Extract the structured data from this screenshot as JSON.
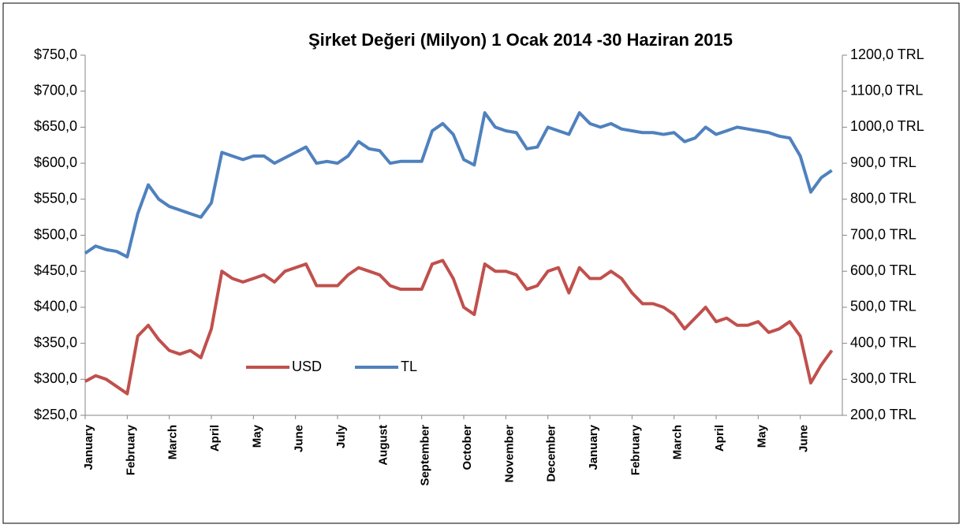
{
  "chart_data": {
    "type": "line",
    "title": "Şirket Değeri  (Milyon) 1 Ocak 2014 -30 Haziran 2015",
    "categories": [
      "January",
      null,
      null,
      null,
      "February",
      null,
      null,
      null,
      "March",
      null,
      null,
      null,
      "April",
      null,
      null,
      null,
      "May",
      null,
      null,
      null,
      "June",
      null,
      null,
      null,
      "July",
      null,
      null,
      null,
      "August",
      null,
      null,
      null,
      "September",
      null,
      null,
      null,
      "October",
      null,
      null,
      null,
      "November",
      null,
      null,
      null,
      "December",
      null,
      null,
      null,
      "January",
      null,
      null,
      null,
      "February",
      null,
      null,
      null,
      "March",
      null,
      null,
      null,
      "April",
      null,
      null,
      null,
      "May",
      null,
      null,
      null,
      "June",
      null,
      null,
      null
    ],
    "series": [
      {
        "name": "USD",
        "color": "#c0504d",
        "axis": "y",
        "values": [
          297,
          305,
          300,
          290,
          280,
          360,
          375,
          355,
          340,
          335,
          340,
          330,
          370,
          450,
          440,
          435,
          440,
          445,
          435,
          450,
          455,
          460,
          430,
          430,
          430,
          445,
          455,
          450,
          445,
          430,
          425,
          425,
          425,
          460,
          465,
          440,
          400,
          390,
          460,
          450,
          450,
          445,
          425,
          430,
          450,
          455,
          420,
          455,
          440,
          440,
          450,
          440,
          420,
          405,
          405,
          400,
          390,
          370,
          385,
          400,
          380,
          385,
          375,
          375,
          380,
          365,
          370,
          380,
          360,
          295,
          320,
          340
        ]
      },
      {
        "name": "TL",
        "color": "#4f81bd",
        "axis": "y2",
        "values": [
          650,
          670,
          660,
          655,
          640,
          760,
          840,
          800,
          780,
          770,
          760,
          750,
          790,
          930,
          920,
          910,
          920,
          920,
          900,
          915,
          930,
          945,
          900,
          905,
          900,
          920,
          960,
          940,
          935,
          900,
          905,
          905,
          905,
          990,
          1010,
          980,
          910,
          895,
          1040,
          1000,
          990,
          985,
          940,
          945,
          1000,
          990,
          980,
          1040,
          1010,
          1000,
          1010,
          995,
          990,
          985,
          985,
          980,
          985,
          960,
          970,
          1000,
          980,
          990,
          1000,
          995,
          990,
          985,
          975,
          970,
          920,
          820,
          860,
          880
        ]
      }
    ],
    "ylim": [
      250,
      750
    ],
    "yticks": [
      {
        "value": 250,
        "label": "$250,0"
      },
      {
        "value": 300,
        "label": "$300,0"
      },
      {
        "value": 350,
        "label": "$350,0"
      },
      {
        "value": 400,
        "label": "$400,0"
      },
      {
        "value": 450,
        "label": "$450,0"
      },
      {
        "value": 500,
        "label": "$500,0"
      },
      {
        "value": 550,
        "label": "$550,0"
      },
      {
        "value": 600,
        "label": "$600,0"
      },
      {
        "value": 650,
        "label": "$650,0"
      },
      {
        "value": 700,
        "label": "$700,0"
      },
      {
        "value": 750,
        "label": "$750,0"
      }
    ],
    "y2lim": [
      200,
      1200
    ],
    "y2ticks": [
      {
        "value": 200,
        "label": "200,0 TRL"
      },
      {
        "value": 300,
        "label": "300,0 TRL"
      },
      {
        "value": 400,
        "label": "400,0 TRL"
      },
      {
        "value": 500,
        "label": "500,0 TRL"
      },
      {
        "value": 600,
        "label": "600,0 TRL"
      },
      {
        "value": 700,
        "label": "700,0 TRL"
      },
      {
        "value": 800,
        "label": "800,0 TRL"
      },
      {
        "value": 900,
        "label": "900,0 TRL"
      },
      {
        "value": 1000,
        "label": "1000,0 TRL"
      },
      {
        "value": 1100,
        "label": "1100,0 TRL"
      },
      {
        "value": 1200,
        "label": "1200,0 TRL"
      }
    ],
    "legend": "inside-lower-left",
    "grid": false
  }
}
